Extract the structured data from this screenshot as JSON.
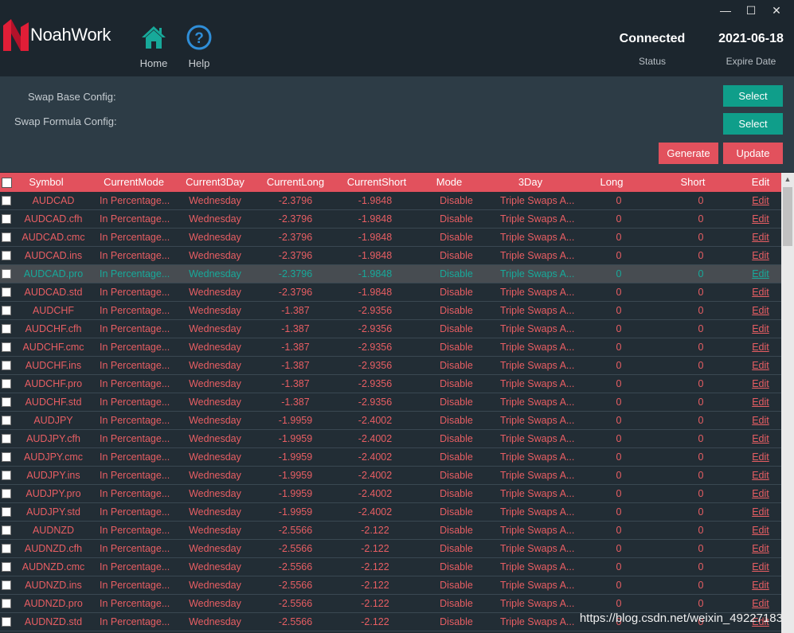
{
  "window": {
    "minimize": "—",
    "maximize": "☐",
    "close": "✕"
  },
  "brand": {
    "name": "NoahWork",
    "color": "#e01e37"
  },
  "nav": {
    "home_label": "Home",
    "help_label": "Help"
  },
  "status": {
    "connection_value": "Connected",
    "connection_label": "Status",
    "expire_value": "2021-06-18",
    "expire_label": "Expire Date"
  },
  "config": {
    "swap_base_label": "Swap Base Config:",
    "swap_formula_label": "Swap Formula Config:",
    "select_label": "Select",
    "generate_label": "Generate",
    "update_label": "Update"
  },
  "colors": {
    "accent_teal": "#0f9e8a",
    "accent_red": "#e2515d",
    "text_red": "#e85e63",
    "text_selected": "#17a99a"
  },
  "table": {
    "columns": [
      "Symbol",
      "CurrentMode",
      "Current3Day",
      "CurrentLong",
      "CurrentShort",
      "Mode",
      "3Day",
      "Long",
      "Short",
      "Edit"
    ],
    "rows": [
      {
        "symbol": "AUDCAD",
        "mode": "In Percentage...",
        "day": "Wednesday",
        "long": "-2.3796",
        "short": "-1.9848",
        "nmode": "Disable",
        "nday": "Triple Swaps A...",
        "nlong": "0",
        "nshort": "0",
        "edit": "Edit"
      },
      {
        "symbol": "AUDCAD.cfh",
        "mode": "In Percentage...",
        "day": "Wednesday",
        "long": "-2.3796",
        "short": "-1.9848",
        "nmode": "Disable",
        "nday": "Triple Swaps A...",
        "nlong": "0",
        "nshort": "0",
        "edit": "Edit"
      },
      {
        "symbol": "AUDCAD.cmc",
        "mode": "In Percentage...",
        "day": "Wednesday",
        "long": "-2.3796",
        "short": "-1.9848",
        "nmode": "Disable",
        "nday": "Triple Swaps A...",
        "nlong": "0",
        "nshort": "0",
        "edit": "Edit"
      },
      {
        "symbol": "AUDCAD.ins",
        "mode": "In Percentage...",
        "day": "Wednesday",
        "long": "-2.3796",
        "short": "-1.9848",
        "nmode": "Disable",
        "nday": "Triple Swaps A...",
        "nlong": "0",
        "nshort": "0",
        "edit": "Edit"
      },
      {
        "symbol": "AUDCAD.pro",
        "mode": "In Percentage...",
        "day": "Wednesday",
        "long": "-2.3796",
        "short": "-1.9848",
        "nmode": "Disable",
        "nday": "Triple Swaps A...",
        "nlong": "0",
        "nshort": "0",
        "edit": "Edit"
      },
      {
        "symbol": "AUDCAD.std",
        "mode": "In Percentage...",
        "day": "Wednesday",
        "long": "-2.3796",
        "short": "-1.9848",
        "nmode": "Disable",
        "nday": "Triple Swaps A...",
        "nlong": "0",
        "nshort": "0",
        "edit": "Edit"
      },
      {
        "symbol": "AUDCHF",
        "mode": "In Percentage...",
        "day": "Wednesday",
        "long": "-1.387",
        "short": "-2.9356",
        "nmode": "Disable",
        "nday": "Triple Swaps A...",
        "nlong": "0",
        "nshort": "0",
        "edit": "Edit"
      },
      {
        "symbol": "AUDCHF.cfh",
        "mode": "In Percentage...",
        "day": "Wednesday",
        "long": "-1.387",
        "short": "-2.9356",
        "nmode": "Disable",
        "nday": "Triple Swaps A...",
        "nlong": "0",
        "nshort": "0",
        "edit": "Edit"
      },
      {
        "symbol": "AUDCHF.cmc",
        "mode": "In Percentage...",
        "day": "Wednesday",
        "long": "-1.387",
        "short": "-2.9356",
        "nmode": "Disable",
        "nday": "Triple Swaps A...",
        "nlong": "0",
        "nshort": "0",
        "edit": "Edit"
      },
      {
        "symbol": "AUDCHF.ins",
        "mode": "In Percentage...",
        "day": "Wednesday",
        "long": "-1.387",
        "short": "-2.9356",
        "nmode": "Disable",
        "nday": "Triple Swaps A...",
        "nlong": "0",
        "nshort": "0",
        "edit": "Edit"
      },
      {
        "symbol": "AUDCHF.pro",
        "mode": "In Percentage...",
        "day": "Wednesday",
        "long": "-1.387",
        "short": "-2.9356",
        "nmode": "Disable",
        "nday": "Triple Swaps A...",
        "nlong": "0",
        "nshort": "0",
        "edit": "Edit"
      },
      {
        "symbol": "AUDCHF.std",
        "mode": "In Percentage...",
        "day": "Wednesday",
        "long": "-1.387",
        "short": "-2.9356",
        "nmode": "Disable",
        "nday": "Triple Swaps A...",
        "nlong": "0",
        "nshort": "0",
        "edit": "Edit"
      },
      {
        "symbol": "AUDJPY",
        "mode": "In Percentage...",
        "day": "Wednesday",
        "long": "-1.9959",
        "short": "-2.4002",
        "nmode": "Disable",
        "nday": "Triple Swaps A...",
        "nlong": "0",
        "nshort": "0",
        "edit": "Edit"
      },
      {
        "symbol": "AUDJPY.cfh",
        "mode": "In Percentage...",
        "day": "Wednesday",
        "long": "-1.9959",
        "short": "-2.4002",
        "nmode": "Disable",
        "nday": "Triple Swaps A...",
        "nlong": "0",
        "nshort": "0",
        "edit": "Edit"
      },
      {
        "symbol": "AUDJPY.cmc",
        "mode": "In Percentage...",
        "day": "Wednesday",
        "long": "-1.9959",
        "short": "-2.4002",
        "nmode": "Disable",
        "nday": "Triple Swaps A...",
        "nlong": "0",
        "nshort": "0",
        "edit": "Edit"
      },
      {
        "symbol": "AUDJPY.ins",
        "mode": "In Percentage...",
        "day": "Wednesday",
        "long": "-1.9959",
        "short": "-2.4002",
        "nmode": "Disable",
        "nday": "Triple Swaps A...",
        "nlong": "0",
        "nshort": "0",
        "edit": "Edit"
      },
      {
        "symbol": "AUDJPY.pro",
        "mode": "In Percentage...",
        "day": "Wednesday",
        "long": "-1.9959",
        "short": "-2.4002",
        "nmode": "Disable",
        "nday": "Triple Swaps A...",
        "nlong": "0",
        "nshort": "0",
        "edit": "Edit"
      },
      {
        "symbol": "AUDJPY.std",
        "mode": "In Percentage...",
        "day": "Wednesday",
        "long": "-1.9959",
        "short": "-2.4002",
        "nmode": "Disable",
        "nday": "Triple Swaps A...",
        "nlong": "0",
        "nshort": "0",
        "edit": "Edit"
      },
      {
        "symbol": "AUDNZD",
        "mode": "In Percentage...",
        "day": "Wednesday",
        "long": "-2.5566",
        "short": "-2.122",
        "nmode": "Disable",
        "nday": "Triple Swaps A...",
        "nlong": "0",
        "nshort": "0",
        "edit": "Edit"
      },
      {
        "symbol": "AUDNZD.cfh",
        "mode": "In Percentage...",
        "day": "Wednesday",
        "long": "-2.5566",
        "short": "-2.122",
        "nmode": "Disable",
        "nday": "Triple Swaps A...",
        "nlong": "0",
        "nshort": "0",
        "edit": "Edit"
      },
      {
        "symbol": "AUDNZD.cmc",
        "mode": "In Percentage...",
        "day": "Wednesday",
        "long": "-2.5566",
        "short": "-2.122",
        "nmode": "Disable",
        "nday": "Triple Swaps A...",
        "nlong": "0",
        "nshort": "0",
        "edit": "Edit"
      },
      {
        "symbol": "AUDNZD.ins",
        "mode": "In Percentage...",
        "day": "Wednesday",
        "long": "-2.5566",
        "short": "-2.122",
        "nmode": "Disable",
        "nday": "Triple Swaps A...",
        "nlong": "0",
        "nshort": "0",
        "edit": "Edit"
      },
      {
        "symbol": "AUDNZD.pro",
        "mode": "In Percentage...",
        "day": "Wednesday",
        "long": "-2.5566",
        "short": "-2.122",
        "nmode": "Disable",
        "nday": "Triple Swaps A...",
        "nlong": "0",
        "nshort": "0",
        "edit": "Edit"
      },
      {
        "symbol": "AUDNZD.std",
        "mode": "In Percentage...",
        "day": "Wednesday",
        "long": "-2.5566",
        "short": "-2.122",
        "nmode": "Disable",
        "nday": "Triple Swaps A...",
        "nlong": "0",
        "nshort": "0",
        "edit": "Edit"
      }
    ],
    "selected_row": 4
  },
  "watermark": "https://blog.csdn.net/weixin_49227183"
}
